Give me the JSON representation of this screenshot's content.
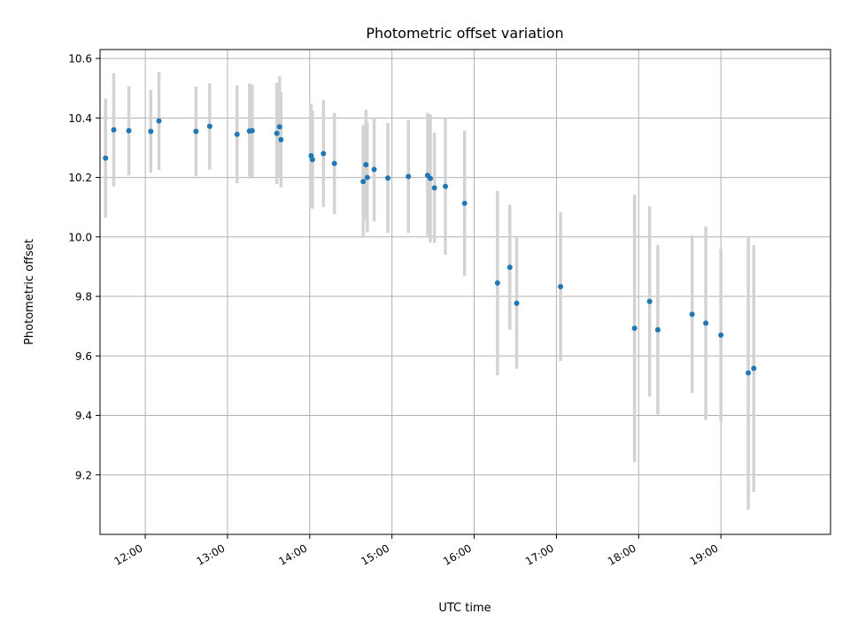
{
  "chart_data": {
    "type": "scatter",
    "title": "Photometric offset variation",
    "xlabel": "UTC time",
    "ylabel": "Photometric offset",
    "x_ticks": [
      "12:00",
      "13:00",
      "14:00",
      "15:00",
      "16:00",
      "17:00",
      "18:00",
      "19:00"
    ],
    "y_ticks": [
      "9.2",
      "9.4",
      "9.6",
      "9.8",
      "10.0",
      "10.2",
      "10.4",
      "10.6"
    ],
    "xlim": [
      "11:27",
      "20:20"
    ],
    "ylim": [
      9.0,
      10.63
    ],
    "grid": true,
    "legend": false,
    "colors": {
      "point": "#1f77b4",
      "errorbar": "#d3d3d3"
    },
    "points": [
      {
        "time": "11:31",
        "value": 10.265,
        "err": 0.2
      },
      {
        "time": "11:37",
        "value": 10.36,
        "err": 0.19
      },
      {
        "time": "11:48",
        "value": 10.357,
        "err": 0.15
      },
      {
        "time": "12:04",
        "value": 10.355,
        "err": 0.14
      },
      {
        "time": "12:10",
        "value": 10.39,
        "err": 0.165
      },
      {
        "time": "12:37",
        "value": 10.355,
        "err": 0.15
      },
      {
        "time": "12:47",
        "value": 10.372,
        "err": 0.145
      },
      {
        "time": "13:07",
        "value": 10.345,
        "err": 0.165
      },
      {
        "time": "13:16",
        "value": 10.356,
        "err": 0.16
      },
      {
        "time": "13:18",
        "value": 10.357,
        "err": 0.155
      },
      {
        "time": "13:36",
        "value": 10.348,
        "err": 0.17
      },
      {
        "time": "13:38",
        "value": 10.37,
        "err": 0.17
      },
      {
        "time": "13:39",
        "value": 10.327,
        "err": 0.16
      },
      {
        "time": "14:01",
        "value": 10.273,
        "err": 0.175
      },
      {
        "time": "14:02",
        "value": 10.26,
        "err": 0.165
      },
      {
        "time": "14:10",
        "value": 10.28,
        "err": 0.18
      },
      {
        "time": "14:18",
        "value": 10.247,
        "err": 0.17
      },
      {
        "time": "14:39",
        "value": 10.186,
        "err": 0.19
      },
      {
        "time": "14:41",
        "value": 10.243,
        "err": 0.185
      },
      {
        "time": "14:42",
        "value": 10.2,
        "err": 0.185
      },
      {
        "time": "14:47",
        "value": 10.227,
        "err": 0.175
      },
      {
        "time": "14:57",
        "value": 10.198,
        "err": 0.185
      },
      {
        "time": "15:12",
        "value": 10.203,
        "err": 0.19
      },
      {
        "time": "15:26",
        "value": 10.207,
        "err": 0.21
      },
      {
        "time": "15:28",
        "value": 10.197,
        "err": 0.215
      },
      {
        "time": "15:31",
        "value": 10.165,
        "err": 0.185
      },
      {
        "time": "15:39",
        "value": 10.17,
        "err": 0.23
      },
      {
        "time": "15:53",
        "value": 10.113,
        "err": 0.245
      },
      {
        "time": "16:17",
        "value": 9.845,
        "err": 0.31
      },
      {
        "time": "16:26",
        "value": 9.898,
        "err": 0.21
      },
      {
        "time": "16:31",
        "value": 9.777,
        "err": 0.22
      },
      {
        "time": "17:03",
        "value": 9.833,
        "err": 0.25
      },
      {
        "time": "17:57",
        "value": 9.693,
        "err": 0.45
      },
      {
        "time": "18:08",
        "value": 9.783,
        "err": 0.32
      },
      {
        "time": "18:14",
        "value": 9.688,
        "err": 0.285
      },
      {
        "time": "18:39",
        "value": 9.74,
        "err": 0.265
      },
      {
        "time": "18:49",
        "value": 9.71,
        "err": 0.325
      },
      {
        "time": "19:00",
        "value": 9.67,
        "err": 0.29
      },
      {
        "time": "19:20",
        "value": 9.543,
        "err": 0.46
      },
      {
        "time": "19:24",
        "value": 9.558,
        "err": 0.415
      }
    ]
  }
}
